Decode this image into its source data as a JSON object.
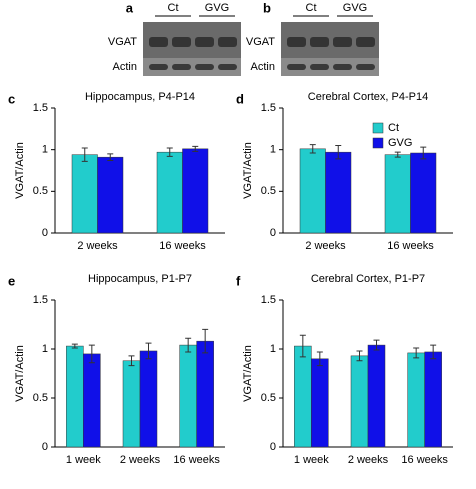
{
  "blots": [
    {
      "label": "a",
      "groups": [
        "Ct",
        "GVG"
      ],
      "rows": [
        "VGAT",
        "Actin"
      ]
    },
    {
      "label": "b",
      "groups": [
        "Ct",
        "GVG"
      ],
      "rows": [
        "VGAT",
        "Actin"
      ]
    }
  ],
  "chart_data": [
    {
      "type": "bar",
      "label": "c",
      "title": "Hippocampus, P4-P14",
      "ylabel": "VGAT/Actin",
      "categories": [
        "2 weeks",
        "16 weeks"
      ],
      "series": [
        {
          "name": "Ct",
          "color": "#22cccc",
          "values": [
            0.94,
            0.97
          ],
          "errors": [
            0.08,
            0.05
          ]
        },
        {
          "name": "GVG",
          "color": "#1010e8",
          "values": [
            0.91,
            1.01
          ],
          "errors": [
            0.04,
            0.03
          ]
        }
      ],
      "ylim": [
        0,
        1.5
      ],
      "yticks": [
        0,
        0.5,
        1,
        1.5
      ]
    },
    {
      "type": "bar",
      "label": "d",
      "title": "Cerebral Cortex, P4-P14",
      "ylabel": "VGAT/Actin",
      "categories": [
        "2 weeks",
        "16 weeks"
      ],
      "series": [
        {
          "name": "Ct",
          "color": "#22cccc",
          "values": [
            1.01,
            0.94
          ],
          "errors": [
            0.05,
            0.03
          ]
        },
        {
          "name": "GVG",
          "color": "#1010e8",
          "values": [
            0.97,
            0.96
          ],
          "errors": [
            0.08,
            0.07
          ]
        }
      ],
      "ylim": [
        0,
        1.5
      ],
      "yticks": [
        0,
        0.5,
        1,
        1.5
      ],
      "legend": "upper right"
    },
    {
      "type": "bar",
      "label": "e",
      "title": "Hippocampus, P1-P7",
      "ylabel": "VGAT/Actin",
      "categories": [
        "1 week",
        "2 weeks",
        "16 weeks"
      ],
      "series": [
        {
          "name": "Ct",
          "color": "#22cccc",
          "values": [
            1.03,
            0.88,
            1.04
          ],
          "errors": [
            0.02,
            0.05,
            0.07
          ]
        },
        {
          "name": "GVG",
          "color": "#1010e8",
          "values": [
            0.95,
            0.98,
            1.08
          ],
          "errors": [
            0.09,
            0.08,
            0.12
          ]
        }
      ],
      "ylim": [
        0,
        1.5
      ],
      "yticks": [
        0,
        0.5,
        1,
        1.5
      ]
    },
    {
      "type": "bar",
      "label": "f",
      "title": "Cerebral Cortex, P1-P7",
      "ylabel": "VGAT/Actin",
      "categories": [
        "1 week",
        "2 weeks",
        "16 weeks"
      ],
      "series": [
        {
          "name": "Ct",
          "color": "#22cccc",
          "values": [
            1.03,
            0.93,
            0.96
          ],
          "errors": [
            0.11,
            0.05,
            0.05
          ]
        },
        {
          "name": "GVG",
          "color": "#1010e8",
          "values": [
            0.9,
            1.04,
            0.97
          ],
          "errors": [
            0.07,
            0.05,
            0.07
          ]
        }
      ],
      "ylim": [
        0,
        1.5
      ],
      "yticks": [
        0,
        0.5,
        1,
        1.5
      ]
    }
  ]
}
